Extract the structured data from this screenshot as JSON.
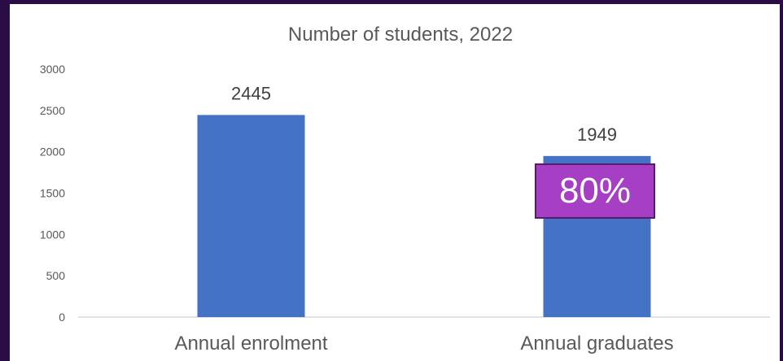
{
  "chart_data": {
    "type": "bar",
    "title": "Number of students, 2022",
    "xlabel": "",
    "ylabel": "",
    "categories": [
      "Annual enrolment",
      "Annual graduates"
    ],
    "values": [
      2445,
      1949
    ],
    "data_labels": [
      "2445",
      "1949"
    ],
    "ylim": [
      0,
      3000
    ],
    "yticks": [
      0,
      500,
      1000,
      1500,
      2000,
      2500,
      3000
    ],
    "grid": false,
    "legend": "none",
    "bar_color": "#4472c4"
  },
  "annotation": {
    "text": "80%",
    "background": "#a63fc4"
  },
  "colors": {
    "frame": "#2a0d44",
    "axis_text": "#595959",
    "axis_line": "#d9d9d9"
  }
}
